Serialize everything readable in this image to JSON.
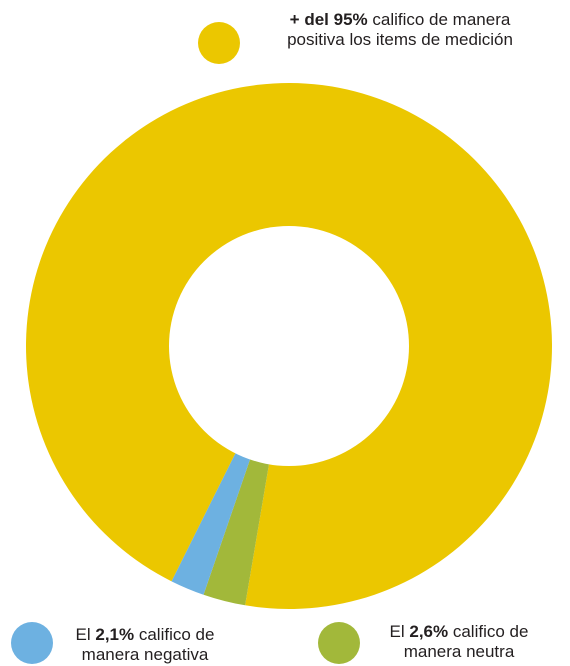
{
  "chart_data": {
    "type": "pie",
    "donut": true,
    "slices": [
      {
        "key": "positive",
        "label": "+ del 95%",
        "value": 95.3,
        "color": "#ebc700"
      },
      {
        "key": "negative",
        "label": "2,1%",
        "value": 2.1,
        "color": "#6db1e1"
      },
      {
        "key": "neutral",
        "label": "2,6%",
        "value": 2.6,
        "color": "#a2b83a"
      }
    ]
  },
  "legend": {
    "positive": {
      "bold": "+ del 95%",
      "line1_rest": " califico de manera",
      "line2": "positiva los items de medición"
    },
    "negative": {
      "prefix": "El ",
      "bold": "2,1%",
      "line1_rest": " califico de",
      "line2": "manera negativa"
    },
    "neutral": {
      "prefix": "El ",
      "bold": "2,6%",
      "line1_rest": " califico de",
      "line2": "manera neutra"
    }
  },
  "colors": {
    "positive": "#ebc700",
    "negative": "#6db1e1",
    "neutral": "#a2b83a",
    "center": "#ffffff"
  }
}
